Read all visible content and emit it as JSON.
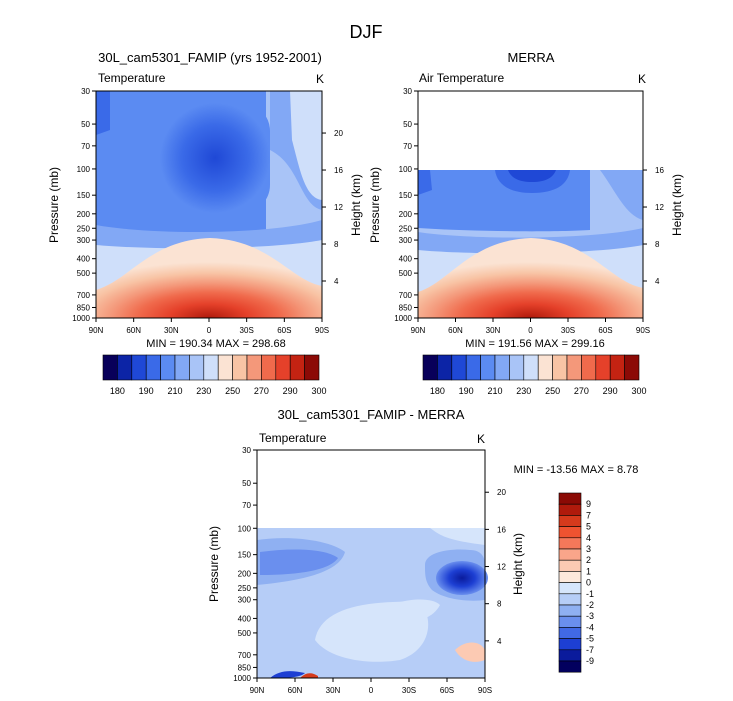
{
  "figure": {
    "title": "DJF"
  },
  "chart_data": [
    {
      "type": "heatmap",
      "title": "30L_cam5301_FAMIP (yrs 1952-2001)",
      "left_label": "Temperature",
      "right_label": "K",
      "ylabel": "Pressure (mb)",
      "ylabel_right": "Height (km)",
      "x_ticks": [
        "90N",
        "60N",
        "30N",
        "0",
        "30S",
        "60S",
        "90S"
      ],
      "y_ticks": [
        "30",
        "50",
        "70",
        "100",
        "150",
        "200",
        "250",
        "300",
        "400",
        "500",
        "700",
        "850",
        "1000"
      ],
      "height_ticks": [
        "20",
        "16",
        "12",
        "8",
        "4"
      ],
      "stats": "MIN = 190.34  MAX = 298.68",
      "colorbar_labels": [
        "180",
        "190",
        "210",
        "230",
        "250",
        "270",
        "290",
        "300"
      ],
      "ylim": [
        1000,
        30
      ],
      "xlim": [
        90,
        -90
      ],
      "data_top_pressure": 30
    },
    {
      "type": "heatmap",
      "title": "MERRA",
      "left_label": "Air Temperature",
      "right_label": "K",
      "ylabel": "Pressure (mb)",
      "ylabel_right": "Height (km)",
      "x_ticks": [
        "90N",
        "60N",
        "30N",
        "0",
        "30S",
        "60S",
        "90S"
      ],
      "y_ticks": [
        "30",
        "50",
        "70",
        "100",
        "150",
        "200",
        "250",
        "300",
        "400",
        "500",
        "700",
        "850",
        "1000"
      ],
      "height_ticks": [
        "16",
        "12",
        "8",
        "4"
      ],
      "stats": "MIN = 191.56  MAX = 299.16",
      "colorbar_labels": [
        "180",
        "190",
        "210",
        "230",
        "250",
        "270",
        "290",
        "300"
      ],
      "ylim": [
        1000,
        30
      ],
      "xlim": [
        90,
        -90
      ],
      "data_top_pressure": 100
    },
    {
      "type": "heatmap",
      "title": "30L_cam5301_FAMIP - MERRA",
      "left_label": "Temperature",
      "right_label": "K",
      "ylabel": "Pressure (mb)",
      "ylabel_right": "Height (km)",
      "x_ticks": [
        "90N",
        "60N",
        "30N",
        "0",
        "30S",
        "60S",
        "90S"
      ],
      "y_ticks": [
        "30",
        "50",
        "70",
        "100",
        "150",
        "200",
        "250",
        "300",
        "400",
        "500",
        "700",
        "850",
        "1000"
      ],
      "height_ticks": [
        "20",
        "16",
        "12",
        "8",
        "4"
      ],
      "stats": "MIN = -13.56  MAX =  8.78",
      "colorbar_labels": [
        "9",
        "7",
        "5",
        "4",
        "3",
        "2",
        "1",
        "0",
        "-1",
        "-2",
        "-3",
        "-4",
        "-5",
        "-7",
        "-9"
      ],
      "ylim": [
        1000,
        30
      ],
      "xlim": [
        90,
        -90
      ],
      "data_top_pressure": 100
    }
  ],
  "colors": {
    "temperature_scale": [
      "#08005a",
      "#0c24a6",
      "#1f48d6",
      "#3a6ae8",
      "#5b8bf2",
      "#82a8f5",
      "#a9c4f7",
      "#cfdffa",
      "#fbe3d3",
      "#f8c4a5",
      "#f4987a",
      "#f06a4c",
      "#e5412a",
      "#c42312",
      "#8c0a06"
    ],
    "difference_scale": [
      "#8b0a05",
      "#b01a0c",
      "#d63a1c",
      "#ef5330",
      "#f5785a",
      "#f9a58a",
      "#fccab3",
      "#fde9dc",
      "#d6e5fb",
      "#b6cdf7",
      "#8fb0f2",
      "#6a8fee",
      "#4169e6",
      "#1d3fd3",
      "#0a1b9c",
      "#02005e"
    ]
  }
}
